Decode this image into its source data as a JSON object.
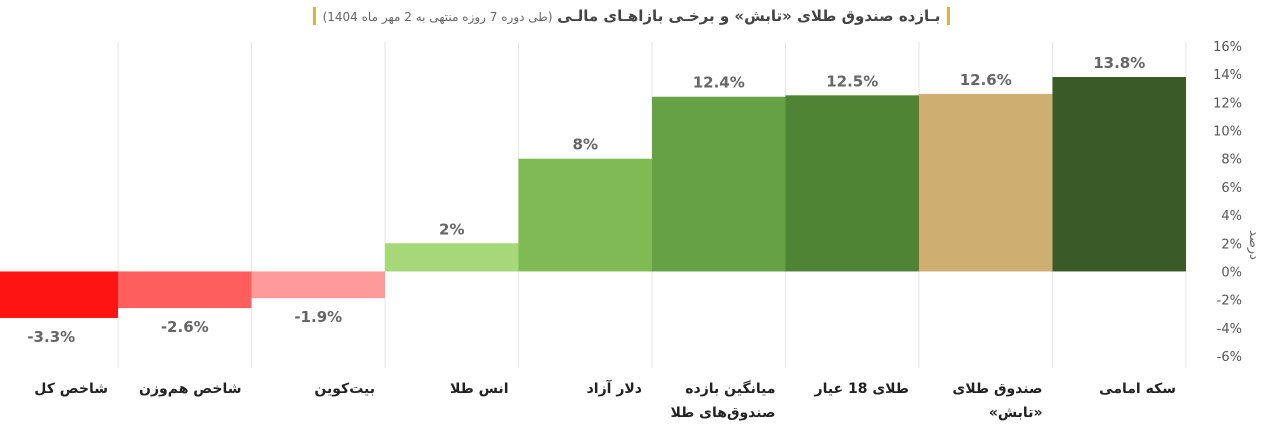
{
  "chart_data": {
    "type": "bar",
    "title": "بـازده صندوق طلای «تابش» و برخـی بازاهـای مالـی",
    "subtitle": "(طی دوره 7 روزه منتهی به 2 مهر ماه 1404)",
    "ylabel": "درصد",
    "ylim": [
      -6,
      16
    ],
    "yticks": [
      "16%",
      "14%",
      "12%",
      "10%",
      "8%",
      "6%",
      "4%",
      "2%",
      "0%",
      "-2%",
      "-4%",
      "-6%"
    ],
    "categories": [
      [
        "سکه امامی"
      ],
      [
        "صندوق طلای",
        "«تابش»"
      ],
      [
        "طلای 18 عیار"
      ],
      [
        "میانگین بازده",
        "صندوق‌های طلا"
      ],
      [
        "دلار آزاد"
      ],
      [
        "انس طلا"
      ],
      [
        "بیت‌کوین"
      ],
      [
        "شاخص هم‌وزن"
      ],
      [
        "شاخص کل"
      ]
    ],
    "values": [
      13.8,
      12.6,
      12.5,
      12.4,
      8,
      2,
      -1.9,
      -2.6,
      -3.3
    ],
    "value_labels": [
      "13.8%",
      "12.6%",
      "12.5%",
      "12.4%",
      "8%",
      "2%",
      "-1.9%",
      "-2.6%",
      "-3.3%"
    ],
    "colors": [
      "#3a5a28",
      "#cfae72",
      "#4f8434",
      "#67a145",
      "#80ba55",
      "#a6d779",
      "#ff9a9a",
      "#ff5e5e",
      "#ff1414"
    ],
    "grid": "vertical"
  }
}
